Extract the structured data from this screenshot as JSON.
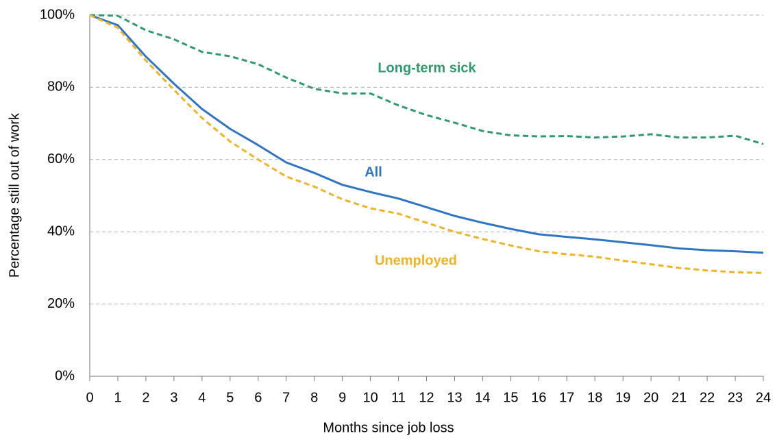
{
  "chart_data": {
    "type": "line",
    "x_label": "Months since job loss",
    "y_label": "Percentage still out of work",
    "x": [
      0,
      1,
      2,
      3,
      4,
      5,
      6,
      7,
      8,
      9,
      10,
      11,
      12,
      13,
      14,
      15,
      16,
      17,
      18,
      19,
      20,
      21,
      22,
      23,
      24
    ],
    "series": [
      {
        "name": "Long-term sick",
        "color": "#2e9a6e",
        "dashed": true,
        "values": [
          100,
          99.8,
          95.8,
          93.3,
          89.8,
          88.6,
          86.4,
          82.7,
          79.6,
          78.3,
          78.3,
          75,
          72.3,
          70.2,
          67.9,
          66.7,
          66.4,
          66.5,
          66.1,
          66.4,
          67,
          66.1,
          66.1,
          66.6,
          64.3
        ]
      },
      {
        "name": "All",
        "color": "#2e75c6",
        "dashed": false,
        "values": [
          100,
          97.2,
          88.5,
          81,
          74,
          68.5,
          64,
          59.2,
          56.3,
          53,
          51,
          49.2,
          46.8,
          44.4,
          42.5,
          40.8,
          39.3,
          38.6,
          37.9,
          37.1,
          36.3,
          35.4,
          34.9,
          34.6,
          34.2
        ]
      },
      {
        "name": "Unemployed",
        "color": "#f0b323",
        "dashed": true,
        "values": [
          100,
          96.5,
          87.4,
          79.3,
          71.5,
          65,
          60,
          55.3,
          52.5,
          49,
          46.5,
          45,
          42.5,
          40,
          38,
          36.2,
          34.6,
          33.8,
          33.1,
          32,
          31,
          30,
          29.3,
          28.8,
          28.6
        ]
      }
    ],
    "xlim": [
      0,
      24
    ],
    "xticks": [
      0,
      1,
      2,
      3,
      4,
      5,
      6,
      7,
      8,
      9,
      10,
      11,
      12,
      13,
      14,
      15,
      16,
      17,
      18,
      19,
      20,
      21,
      22,
      23,
      24
    ],
    "ylim": [
      0,
      100
    ],
    "yticks": [
      {
        "value": 0,
        "label": "0%"
      },
      {
        "value": 20,
        "label": "20%"
      },
      {
        "value": 40,
        "label": "40%"
      },
      {
        "value": 60,
        "label": "60%"
      },
      {
        "value": 80,
        "label": "80%"
      },
      {
        "value": 100,
        "label": "100%"
      }
    ],
    "grid": true
  }
}
